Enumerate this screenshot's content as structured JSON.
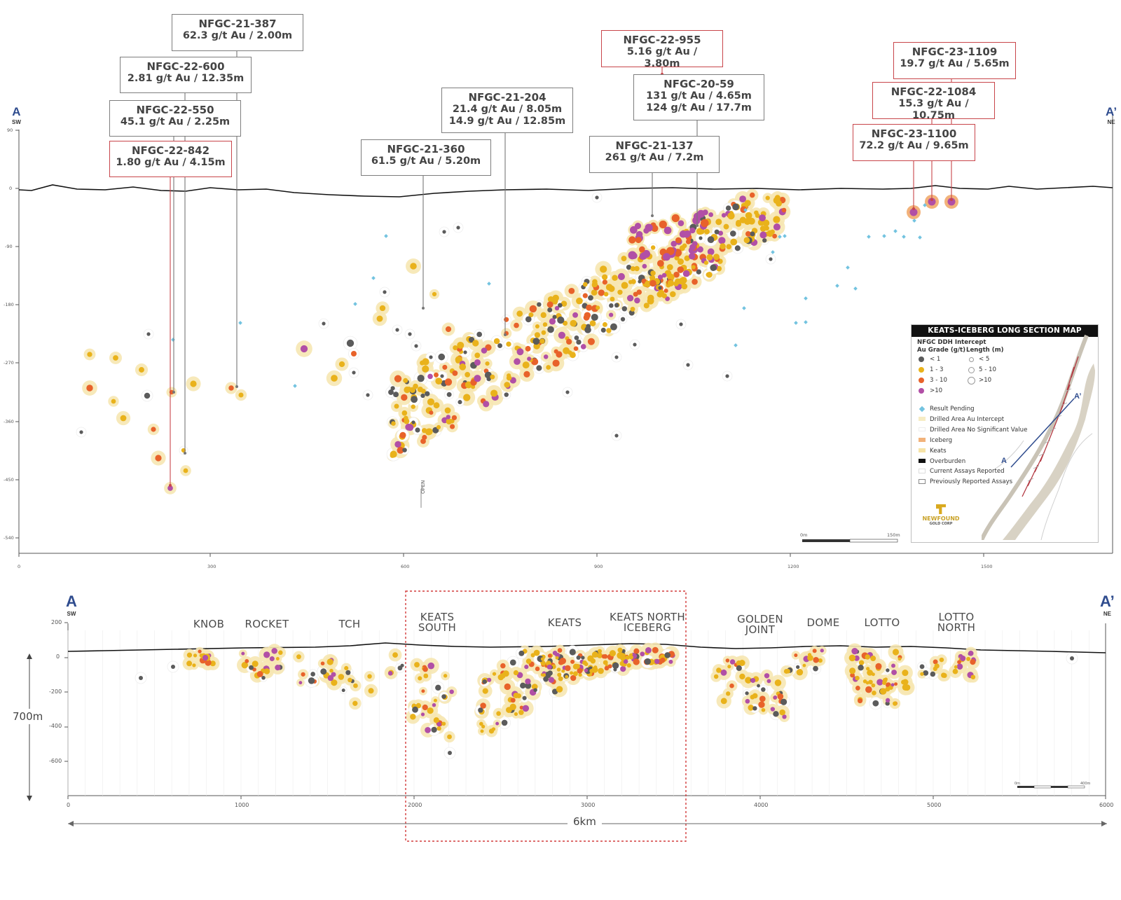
{
  "top_section": {
    "end_left": {
      "letter": "A",
      "dir": "SW"
    },
    "end_right": {
      "letter": "A’",
      "dir": "NE"
    },
    "y_ticks": [
      "90",
      "0",
      "-90",
      "-180",
      "-270",
      "-360",
      "-450",
      "-540"
    ],
    "x_ticks": [
      "0",
      "300",
      "600",
      "900",
      "1200",
      "1500"
    ],
    "open_label": "OPEN",
    "scale_label_start": "0m",
    "scale_label_end": "150m",
    "callouts": [
      {
        "id": "NFGC-21-387",
        "lines": [
          "62.3 g/t Au / 2.00m"
        ],
        "border": "grey"
      },
      {
        "id": "NFGC-22-600",
        "lines": [
          "2.81 g/t Au / 12.35m"
        ],
        "border": "grey"
      },
      {
        "id": "NFGC-22-550",
        "lines": [
          "45.1 g/t Au / 2.25m"
        ],
        "border": "grey"
      },
      {
        "id": "NFGC-22-842",
        "lines": [
          "1.80 g/t Au / 4.15m"
        ],
        "border": "red"
      },
      {
        "id": "NFGC-21-360",
        "lines": [
          "61.5 g/t Au / 5.20m"
        ],
        "border": "grey"
      },
      {
        "id": "NFGC-21-204",
        "lines": [
          "21.4 g/t Au / 8.05m",
          "14.9 g/t Au / 12.85m"
        ],
        "border": "grey"
      },
      {
        "id": "NFGC-22-955",
        "lines": [
          "5.16 g/t Au / 3.80m"
        ],
        "border": "red"
      },
      {
        "id": "NFGC-20-59",
        "lines": [
          "131 g/t Au / 4.65m",
          "124 g/t Au / 17.7m"
        ],
        "border": "grey"
      },
      {
        "id": "NFGC-21-137",
        "lines": [
          "261 g/t Au / 7.2m"
        ],
        "border": "grey"
      },
      {
        "id": "NFGC-23-1109",
        "lines": [
          "19.7 g/t Au / 5.65m"
        ],
        "border": "red"
      },
      {
        "id": "NFGC-22-1084",
        "lines": [
          "15.3 g/t Au / 10.75m"
        ],
        "border": "red"
      },
      {
        "id": "NFGC-23-1100",
        "lines": [
          "72.2 g/t Au / 9.65m"
        ],
        "border": "red"
      }
    ]
  },
  "legend": {
    "title": "KEATS-ICEBERG LONG SECTION MAP",
    "subtitle": "NFGC DDH Intercept",
    "grade_header": "Au Grade (g/t)",
    "length_header": "Length (m)",
    "grades": [
      {
        "label": "< 1",
        "color": "#5b5b5b"
      },
      {
        "label": "1 - 3",
        "color": "#e9b21b"
      },
      {
        "label": "3 - 10",
        "color": "#e8622a"
      },
      {
        "label": ">10",
        "color": "#b14fa6"
      }
    ],
    "lengths": [
      "< 5",
      "5 - 10",
      ">10"
    ],
    "items": [
      {
        "label": "Result Pending",
        "swatch": "diamond",
        "color": "#73c3e0"
      },
      {
        "label": "Drilled Area Au Intercept",
        "swatch": "rect",
        "color": "#f6ecc4"
      },
      {
        "label": "Drilled Area No Significant Value",
        "swatch": "rect",
        "color": "#ffffff"
      },
      {
        "label": "Iceberg",
        "swatch": "rect",
        "color": "#f2b27a"
      },
      {
        "label": "Keats",
        "swatch": "rect",
        "color": "#f6e3a7"
      },
      {
        "label": "Overburden",
        "swatch": "rect",
        "color": "#111111"
      },
      {
        "label": "Current Assays Reported",
        "swatch": "rect-outline",
        "color": "#dddddd"
      },
      {
        "label": "Previously Reported Assays",
        "swatch": "rect-outline",
        "color": "#888888"
      }
    ],
    "logo_line1": "NEWFOUND",
    "logo_line2": "GOLD CORP",
    "inset_a": "A",
    "inset_a_prime": "A’"
  },
  "bottom_section": {
    "end_left": {
      "letter": "A",
      "dir": "SW"
    },
    "end_right": {
      "letter": "A’",
      "dir": "NE"
    },
    "y_ticks": [
      "200",
      "0",
      "-200",
      "-400",
      "-600"
    ],
    "x_ticks": [
      "0",
      "1000",
      "2000",
      "3000",
      "4000",
      "5000",
      "6000"
    ],
    "height_label": "700m",
    "length_label": "6km",
    "zones": [
      {
        "lines": [
          "KNOB"
        ]
      },
      {
        "lines": [
          "ROCKET"
        ]
      },
      {
        "lines": [
          "TCH"
        ]
      },
      {
        "lines": [
          "KEATS",
          "SOUTH"
        ]
      },
      {
        "lines": [
          "KEATS"
        ]
      },
      {
        "lines": [
          "KEATS NORTH",
          "ICEBERG"
        ]
      },
      {
        "lines": [
          "GOLDEN",
          "JOINT"
        ]
      },
      {
        "lines": [
          "DOME"
        ]
      },
      {
        "lines": [
          "LOTTO"
        ]
      },
      {
        "lines": [
          "LOTTO",
          "NORTH"
        ]
      }
    ],
    "scale_label_start": "0m",
    "scale_label_end": "400m"
  },
  "colors": {
    "grade_lt1": "#5b5b5b",
    "grade_1_3": "#e9b21b",
    "grade_3_10": "#e8622a",
    "grade_gt10": "#b14fa6",
    "halo": "#f6e7b2",
    "pending": "#73c3e0",
    "red_box": "#c8454a",
    "end_label_blue": "#2f4c8e"
  }
}
